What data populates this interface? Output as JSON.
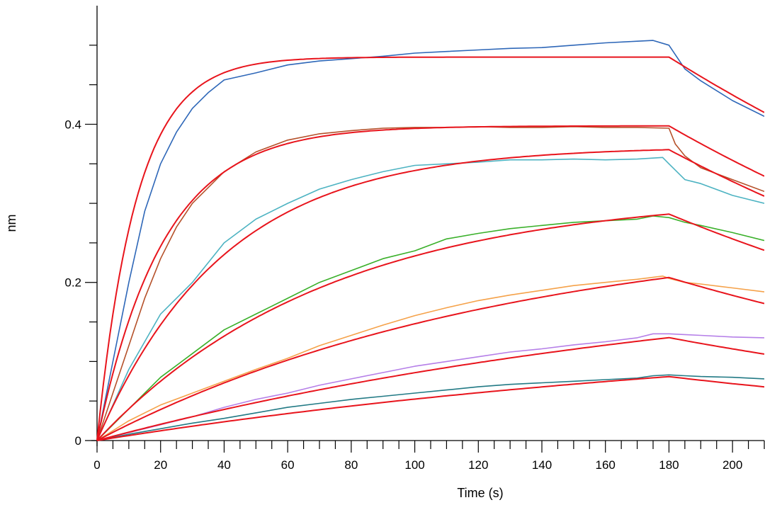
{
  "chart_data": {
    "type": "line",
    "title": "",
    "xlabel": "Time (s)",
    "ylabel": "nm",
    "xlim": [
      0,
      210
    ],
    "ylim": [
      0,
      0.55
    ],
    "x_ticks": [
      0,
      20,
      40,
      60,
      80,
      100,
      120,
      140,
      160,
      180,
      200
    ],
    "x_tick_labels": [
      "0",
      "20",
      "40",
      "60",
      "80",
      "100",
      "120",
      "140",
      "160",
      "180",
      "200"
    ],
    "y_ticks": [
      0,
      0.2,
      0.4
    ],
    "y_tick_labels": [
      "0",
      "0.2",
      "0.4"
    ],
    "grid": false,
    "legend": "none",
    "fit_color": "#e8141c",
    "association_end_x": 180,
    "series": [
      {
        "color": "#2e67b8",
        "x": [
          0,
          5,
          10,
          15,
          20,
          25,
          30,
          35,
          40,
          50,
          60,
          70,
          80,
          90,
          100,
          110,
          120,
          130,
          140,
          150,
          160,
          170,
          175,
          180,
          185,
          190,
          200,
          210
        ],
        "values": [
          0.0,
          0.1,
          0.2,
          0.29,
          0.35,
          0.39,
          0.42,
          0.44,
          0.456,
          0.465,
          0.475,
          0.48,
          0.483,
          0.486,
          0.49,
          0.492,
          0.494,
          0.496,
          0.497,
          0.5,
          0.503,
          0.505,
          0.506,
          0.5,
          0.47,
          0.455,
          0.43,
          0.41
        ]
      },
      {
        "color": "#b5512a",
        "x": [
          0,
          5,
          10,
          15,
          20,
          25,
          30,
          35,
          40,
          50,
          60,
          70,
          80,
          90,
          100,
          110,
          120,
          130,
          140,
          150,
          160,
          170,
          180,
          182,
          185,
          190,
          200,
          210
        ],
        "values": [
          0.0,
          0.06,
          0.12,
          0.18,
          0.23,
          0.27,
          0.3,
          0.32,
          0.34,
          0.365,
          0.38,
          0.388,
          0.392,
          0.395,
          0.396,
          0.396,
          0.397,
          0.396,
          0.396,
          0.397,
          0.396,
          0.396,
          0.395,
          0.375,
          0.36,
          0.345,
          0.33,
          0.315
        ]
      },
      {
        "color": "#4db3c2",
        "x": [
          0,
          10,
          20,
          30,
          40,
          50,
          60,
          70,
          80,
          90,
          100,
          110,
          120,
          130,
          140,
          150,
          160,
          170,
          178,
          180,
          185,
          190,
          200,
          210
        ],
        "values": [
          0.0,
          0.09,
          0.16,
          0.2,
          0.25,
          0.28,
          0.3,
          0.318,
          0.33,
          0.34,
          0.348,
          0.35,
          0.352,
          0.355,
          0.355,
          0.356,
          0.355,
          0.356,
          0.358,
          0.35,
          0.33,
          0.325,
          0.31,
          0.3
        ]
      },
      {
        "color": "#3ab02a",
        "x": [
          0,
          10,
          20,
          30,
          40,
          50,
          60,
          70,
          80,
          90,
          100,
          110,
          120,
          130,
          140,
          150,
          160,
          170,
          175,
          180,
          185,
          190,
          200,
          210
        ],
        "values": [
          0.0,
          0.04,
          0.08,
          0.11,
          0.14,
          0.16,
          0.18,
          0.2,
          0.215,
          0.23,
          0.24,
          0.255,
          0.262,
          0.268,
          0.272,
          0.276,
          0.278,
          0.28,
          0.284,
          0.282,
          0.276,
          0.272,
          0.263,
          0.253
        ]
      },
      {
        "color": "#f5a24a",
        "x": [
          0,
          10,
          20,
          30,
          40,
          50,
          60,
          70,
          80,
          90,
          100,
          110,
          120,
          130,
          140,
          150,
          160,
          170,
          178,
          180,
          185,
          190,
          200,
          210
        ],
        "values": [
          0.0,
          0.025,
          0.045,
          0.06,
          0.075,
          0.09,
          0.104,
          0.12,
          0.133,
          0.146,
          0.158,
          0.168,
          0.177,
          0.184,
          0.19,
          0.196,
          0.2,
          0.204,
          0.208,
          0.205,
          0.2,
          0.198,
          0.193,
          0.188
        ]
      },
      {
        "color": "#b57fe8",
        "x": [
          0,
          10,
          20,
          30,
          40,
          50,
          60,
          70,
          80,
          90,
          100,
          110,
          120,
          130,
          140,
          150,
          160,
          170,
          175,
          180,
          185,
          190,
          200,
          210
        ],
        "values": [
          0.0,
          0.01,
          0.02,
          0.03,
          0.042,
          0.052,
          0.06,
          0.07,
          0.078,
          0.086,
          0.094,
          0.1,
          0.106,
          0.112,
          0.116,
          0.121,
          0.125,
          0.13,
          0.135,
          0.135,
          0.134,
          0.133,
          0.131,
          0.13
        ]
      },
      {
        "color": "#227a85",
        "x": [
          0,
          10,
          20,
          30,
          40,
          50,
          60,
          70,
          80,
          90,
          100,
          110,
          120,
          130,
          140,
          150,
          160,
          170,
          175,
          180,
          185,
          190,
          200,
          210
        ],
        "values": [
          0.0,
          0.008,
          0.015,
          0.022,
          0.028,
          0.035,
          0.042,
          0.047,
          0.052,
          0.056,
          0.06,
          0.064,
          0.068,
          0.071,
          0.073,
          0.075,
          0.077,
          0.079,
          0.082,
          0.083,
          0.082,
          0.081,
          0.08,
          0.078
        ]
      }
    ],
    "fits": [
      {
        "rmax": 0.485,
        "k_on": 0.08,
        "k_off": 0.0052
      },
      {
        "rmax": 0.398,
        "k_on": 0.048,
        "k_off": 0.0058
      },
      {
        "rmax": 0.372,
        "k_on": 0.025,
        "k_off": 0.0058
      },
      {
        "rmax": 0.313,
        "k_on": 0.0137,
        "k_off": 0.0058
      },
      {
        "rmax": 0.275,
        "k_on": 0.0077,
        "k_off": 0.0058
      },
      {
        "rmax": 0.225,
        "k_on": 0.0048,
        "k_off": 0.0058
      },
      {
        "rmax": 0.15,
        "k_on": 0.0043,
        "k_off": 0.0058
      }
    ]
  }
}
